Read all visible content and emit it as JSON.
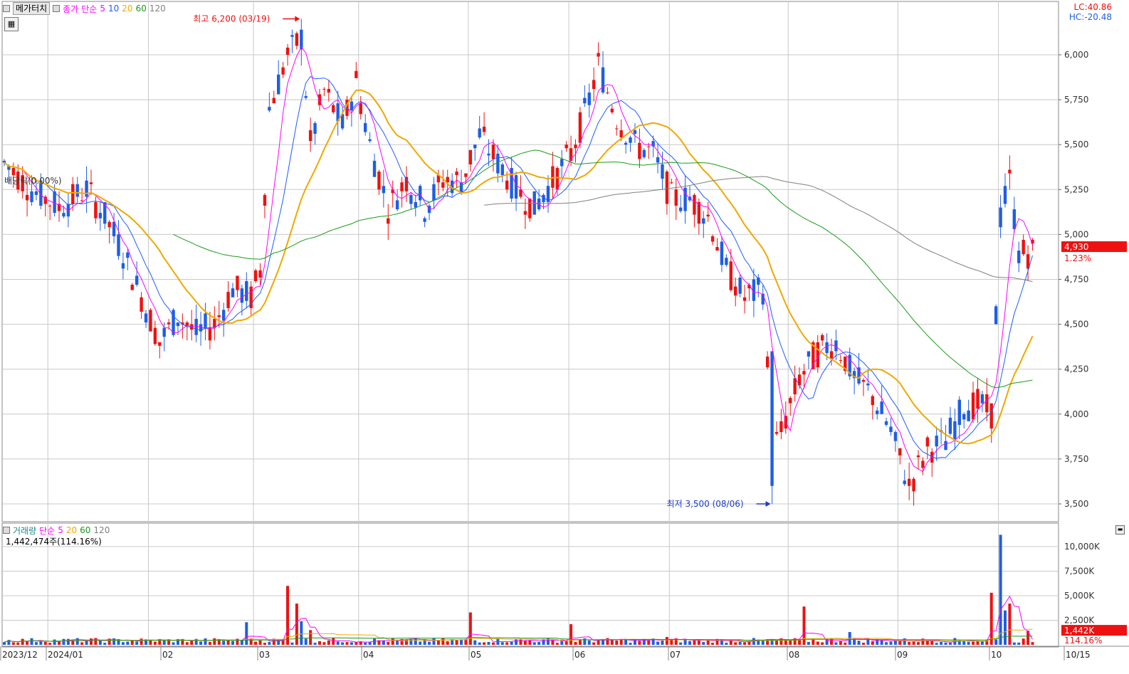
{
  "toolbar": {
    "chart_tab": "메가터치",
    "price_label": "종가",
    "ma_type": "단순",
    "ma_periods": [
      "5",
      "10",
      "20",
      "60",
      "120"
    ],
    "ma_colors": [
      "#ff00ff",
      "#1e5cff",
      "#f0a800",
      "#1a9a1a",
      "#808080"
    ],
    "calendar_icon": "calendar-grid-icon"
  },
  "top_right": {
    "lc": "LC:40.86",
    "hc": "HC:-20.48"
  },
  "overlay": {
    "divrate": "배당락(0.00%)"
  },
  "annotations": {
    "high": {
      "text": "최고 6,200 (03/19)",
      "value": 6200,
      "date": "03/19"
    },
    "low": {
      "text": "최저 3,500 (08/06)",
      "value": 3500,
      "date": "08/06"
    }
  },
  "current": {
    "price": "4,930",
    "pct": "1.23%"
  },
  "volume": {
    "title": "거래량",
    "ma_type": "단순",
    "ma_periods": [
      "5",
      "20",
      "60",
      "120"
    ],
    "ma_colors": [
      "#ff00ff",
      "#f0a800",
      "#1a9a1a",
      "#808080"
    ],
    "total": "1,442,474주(114.16%)",
    "current": "1,442K",
    "pct": "114.16%"
  },
  "colors": {
    "up": "#ee1111",
    "down": "#1e5ee6",
    "grid": "#c8c8c8",
    "axis": "#444444"
  },
  "chart_data": {
    "type": "candlestick",
    "price_axis": {
      "ticks": [
        3500,
        3750,
        4000,
        4250,
        4500,
        4750,
        5000,
        5250,
        5500,
        5750,
        6000
      ],
      "tick_labels": [
        "3,500",
        "3,750",
        "4,000",
        "4,250",
        "4,500",
        "4,750",
        "5,000",
        "5,250",
        "5,500",
        "5,750",
        "6,000"
      ],
      "ylim": [
        3400,
        6260
      ]
    },
    "volume_axis": {
      "ticks": [
        2500000,
        5000000,
        7500000,
        10000000
      ],
      "tick_labels": [
        "2,500K",
        "5,000K",
        "7,500K",
        "10,000K"
      ],
      "ylim": [
        0,
        12200000
      ]
    },
    "x_labels": [
      "2023/12",
      "2024/01",
      "02",
      "03",
      "04",
      "05",
      "06",
      "07",
      "08",
      "09",
      "10",
      "10/15"
    ],
    "anchors": [
      {
        "d": 0,
        "p": 5400
      },
      {
        "d": 6,
        "p": 5250
      },
      {
        "d": 12,
        "p": 5150
      },
      {
        "d": 18,
        "p": 5250
      },
      {
        "d": 22,
        "p": 5100
      },
      {
        "d": 26,
        "p": 4900
      },
      {
        "d": 30,
        "p": 4650
      },
      {
        "d": 34,
        "p": 4400
      },
      {
        "d": 38,
        "p": 4550
      },
      {
        "d": 42,
        "p": 4450
      },
      {
        "d": 46,
        "p": 4500
      },
      {
        "d": 50,
        "p": 4700
      },
      {
        "d": 54,
        "p": 4650
      },
      {
        "d": 56,
        "p": 4800
      },
      {
        "d": 58,
        "p": 5700
      },
      {
        "d": 62,
        "p": 6000
      },
      {
        "d": 65,
        "p": 6100
      },
      {
        "d": 67,
        "p": 5500
      },
      {
        "d": 70,
        "p": 5800
      },
      {
        "d": 74,
        "p": 5600
      },
      {
        "d": 77,
        "p": 5850
      },
      {
        "d": 80,
        "p": 5500
      },
      {
        "d": 84,
        "p": 5150
      },
      {
        "d": 88,
        "p": 5300
      },
      {
        "d": 92,
        "p": 5150
      },
      {
        "d": 96,
        "p": 5300
      },
      {
        "d": 100,
        "p": 5300
      },
      {
        "d": 104,
        "p": 5550
      },
      {
        "d": 108,
        "p": 5400
      },
      {
        "d": 112,
        "p": 5250
      },
      {
        "d": 116,
        "p": 5150
      },
      {
        "d": 120,
        "p": 5300
      },
      {
        "d": 124,
        "p": 5450
      },
      {
        "d": 128,
        "p": 5750
      },
      {
        "d": 130,
        "p": 5950
      },
      {
        "d": 134,
        "p": 5650
      },
      {
        "d": 138,
        "p": 5500
      },
      {
        "d": 142,
        "p": 5450
      },
      {
        "d": 146,
        "p": 5200
      },
      {
        "d": 150,
        "p": 5200
      },
      {
        "d": 154,
        "p": 5100
      },
      {
        "d": 158,
        "p": 4800
      },
      {
        "d": 162,
        "p": 4650
      },
      {
        "d": 166,
        "p": 4700
      },
      {
        "d": 168,
        "p": 3800
      },
      {
        "d": 170,
        "p": 3900
      },
      {
        "d": 174,
        "p": 4200
      },
      {
        "d": 178,
        "p": 4350
      },
      {
        "d": 182,
        "p": 4400
      },
      {
        "d": 186,
        "p": 4200
      },
      {
        "d": 190,
        "p": 4100
      },
      {
        "d": 194,
        "p": 3900
      },
      {
        "d": 198,
        "p": 3600
      },
      {
        "d": 202,
        "p": 3800
      },
      {
        "d": 206,
        "p": 3850
      },
      {
        "d": 210,
        "p": 4050
      },
      {
        "d": 214,
        "p": 4050
      },
      {
        "d": 216,
        "p": 4000
      },
      {
        "d": 218,
        "p": 5100
      },
      {
        "d": 220,
        "p": 5300
      },
      {
        "d": 222,
        "p": 4900
      },
      {
        "d": 224,
        "p": 4900
      }
    ],
    "volume_spikes": [
      {
        "d": 53,
        "v": 2300000
      },
      {
        "d": 62,
        "v": 6000000
      },
      {
        "d": 64,
        "v": 4200000
      },
      {
        "d": 65,
        "v": 2400000
      },
      {
        "d": 67,
        "v": 1500000
      },
      {
        "d": 102,
        "v": 3300000
      },
      {
        "d": 124,
        "v": 2100000
      },
      {
        "d": 145,
        "v": 800000
      },
      {
        "d": 175,
        "v": 3900000
      },
      {
        "d": 185,
        "v": 1300000
      },
      {
        "d": 216,
        "v": 5300000
      },
      {
        "d": 218,
        "v": 11200000
      },
      {
        "d": 219,
        "v": 3500000
      },
      {
        "d": 220,
        "v": 4200000
      },
      {
        "d": 224,
        "v": 1440000
      }
    ]
  }
}
